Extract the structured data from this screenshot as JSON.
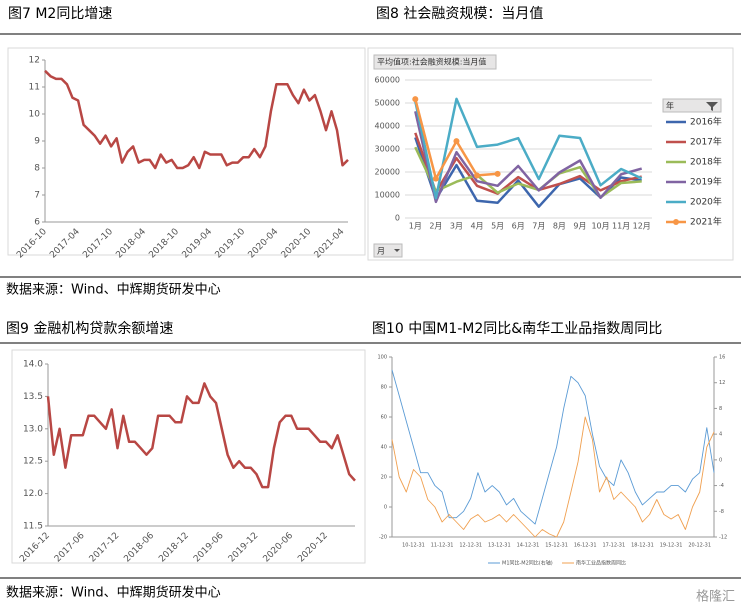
{
  "chart_data": [
    {
      "type": "line",
      "title": "图7 M2同比增速",
      "categories": [
        "2016-10",
        null,
        null,
        null,
        null,
        null,
        "2017-04",
        null,
        null,
        null,
        null,
        null,
        "2017-10",
        null,
        null,
        null,
        null,
        null,
        "2018-04",
        null,
        null,
        null,
        null,
        null,
        "2018-10",
        null,
        null,
        null,
        null,
        null,
        "2019-04",
        null,
        null,
        null,
        null,
        null,
        "2019-10",
        null,
        null,
        null,
        null,
        null,
        "2020-04",
        null,
        null,
        null,
        null,
        null,
        "2020-10",
        null,
        null,
        null,
        null,
        null,
        "2021-04",
        null
      ],
      "values": [
        11.6,
        11.4,
        11.3,
        11.3,
        11.1,
        10.6,
        10.5,
        9.6,
        9.4,
        9.2,
        8.9,
        9.2,
        8.8,
        9.1,
        8.2,
        8.6,
        8.8,
        8.2,
        8.3,
        8.3,
        8.0,
        8.5,
        8.2,
        8.3,
        8.0,
        8.0,
        8.1,
        8.4,
        8.0,
        8.6,
        8.5,
        8.5,
        8.5,
        8.1,
        8.2,
        8.2,
        8.4,
        8.4,
        8.7,
        8.4,
        8.8,
        10.1,
        11.1,
        11.1,
        11.1,
        10.7,
        10.4,
        10.9,
        10.5,
        10.7,
        10.1,
        9.4,
        10.1,
        9.4,
        8.1,
        8.3
      ],
      "color": "#b84744",
      "ylim": [
        6,
        12
      ],
      "yticks": [
        6,
        7,
        8,
        9,
        10,
        11,
        12
      ],
      "grid": false
    },
    {
      "type": "line",
      "title": "图8 社会融资规模：当月值",
      "field_label": "平均值项:社会融资规模:当月值",
      "legend_title": "年",
      "x_field": "月",
      "categories": [
        "1月",
        "2月",
        "3月",
        "4月",
        "5月",
        "6月",
        "7月",
        "8月",
        "9月",
        "10月",
        "11月",
        "12月"
      ],
      "series": [
        {
          "name": "2016年",
          "color": "#3d66ad",
          "values": [
            35000,
            8200,
            23000,
            7500,
            6600,
            16300,
            4900,
            14700,
            17200,
            8900,
            17600,
            16300
          ]
        },
        {
          "name": "2017年",
          "color": "#c0504d",
          "values": [
            37000,
            11200,
            26000,
            14000,
            10600,
            17800,
            12200,
            14800,
            18200,
            12000,
            16000,
            18000
          ]
        },
        {
          "name": "2018年",
          "color": "#9bbb59",
          "values": [
            30800,
            11700,
            15800,
            18700,
            11000,
            15000,
            12200,
            19400,
            22100,
            9000,
            15200,
            15900
          ]
        },
        {
          "name": "2019年",
          "color": "#8064a2",
          "values": [
            46400,
            7000,
            28600,
            16000,
            14000,
            22600,
            12000,
            19800,
            25000,
            8800,
            19000,
            21500
          ]
        },
        {
          "name": "2020年",
          "color": "#4bacc6",
          "values": [
            50700,
            8600,
            51800,
            30900,
            31900,
            34700,
            16900,
            35800,
            34800,
            14200,
            21300,
            17200
          ]
        },
        {
          "name": "2021年",
          "color": "#f79646",
          "marker": true,
          "values": [
            51700,
            17100,
            33400,
            18500,
            19200,
            null,
            null,
            null,
            null,
            null,
            null,
            null
          ]
        }
      ],
      "ylim": [
        0,
        60000
      ],
      "yticks": [
        0,
        10000,
        20000,
        30000,
        40000,
        50000,
        60000
      ],
      "grid": true,
      "legend": "right"
    },
    {
      "type": "line",
      "title": "图9 金融机构贷款余额增速",
      "categories": [
        "2016-12",
        null,
        null,
        null,
        null,
        null,
        "2017-06",
        null,
        null,
        null,
        null,
        null,
        "2017-12",
        null,
        null,
        null,
        null,
        null,
        "2018-06",
        null,
        null,
        null,
        null,
        null,
        "2018-12",
        null,
        null,
        null,
        null,
        null,
        "2019-06",
        null,
        null,
        null,
        null,
        null,
        "2019-12",
        null,
        null,
        null,
        null,
        null,
        "2020-06",
        null,
        null,
        null,
        null,
        null,
        "2020-12",
        null,
        null,
        null,
        null,
        null
      ],
      "values": [
        13.5,
        12.6,
        13.0,
        12.4,
        12.9,
        12.9,
        12.9,
        13.2,
        13.2,
        13.1,
        13.0,
        13.3,
        12.7,
        13.2,
        12.8,
        12.8,
        12.7,
        12.6,
        12.7,
        13.2,
        13.2,
        13.2,
        13.1,
        13.1,
        13.5,
        13.4,
        13.4,
        13.7,
        13.5,
        13.4,
        13.0,
        12.6,
        12.4,
        12.5,
        12.4,
        12.4,
        12.3,
        12.1,
        12.1,
        12.7,
        13.1,
        13.2,
        13.2,
        13.0,
        13.0,
        13.0,
        12.9,
        12.8,
        12.8,
        12.7,
        12.9,
        12.6,
        12.3,
        12.2
      ],
      "color": "#b84744",
      "ylim": [
        11.5,
        14.0
      ],
      "yticks": [
        11.5,
        {
          "value": 12,
          "label": "12.0"
        },
        12.5,
        {
          "value": 13,
          "label": "13.0"
        },
        13.5,
        {
          "value": 14,
          "label": "14.0"
        }
      ],
      "grid": false
    },
    {
      "type": "line",
      "title": "图10 中国M1-M2同比&南华工业品指数周同比",
      "categories": [
        null,
        null,
        null,
        "10-12-31",
        null,
        null,
        null,
        "11-12-31",
        null,
        null,
        null,
        "12-12-31",
        null,
        null,
        null,
        "13-12-31",
        null,
        null,
        null,
        "14-12-31",
        null,
        null,
        null,
        "15-12-31",
        null,
        null,
        null,
        "16-12-31",
        null,
        null,
        null,
        "17-12-31",
        null,
        null,
        null,
        "18-12-31",
        null,
        null,
        null,
        "19-12-31",
        null,
        null,
        null,
        "20-12-31",
        null,
        null
      ],
      "series": [
        {
          "name": "M1同比-M2同比(右轴)",
          "color": "#5b9bd5",
          "axis": "y2",
          "values": [
            14,
            10,
            6,
            2,
            -2,
            -2,
            -4,
            -5,
            -9,
            -9,
            -8,
            -6,
            -2,
            -5,
            -4,
            -5,
            -7,
            -6,
            -8,
            -9,
            -10,
            -6,
            -2,
            2,
            8,
            13,
            12,
            10,
            4,
            -1,
            -3,
            -4,
            0,
            -2,
            -5,
            -7,
            -6,
            -5,
            -5,
            -4,
            -4,
            -5,
            -3,
            -2,
            5,
            -2
          ]
        },
        {
          "name": "南华工业品指数周同比",
          "color": "#f0a050",
          "values": [
            45,
            20,
            10,
            25,
            20,
            5,
            0,
            -10,
            -5,
            -10,
            -15,
            -8,
            -5,
            -10,
            -8,
            -5,
            -10,
            -5,
            -10,
            -15,
            -20,
            -15,
            -18,
            -20,
            -10,
            10,
            30,
            60,
            45,
            10,
            20,
            5,
            10,
            5,
            0,
            -10,
            -5,
            5,
            -5,
            -8,
            -5,
            -15,
            0,
            10,
            40,
            50
          ]
        }
      ],
      "ylim": [
        -20,
        100
      ],
      "yticks": [
        -20,
        0,
        20,
        40,
        60,
        80,
        100
      ],
      "y2lim": [
        -12,
        16
      ],
      "y2ticks": [
        -12,
        -8,
        -4,
        0,
        4,
        8,
        12,
        16
      ],
      "grid": false,
      "legend": "bottom"
    }
  ],
  "sources": [
    "数据来源：Wind、中辉期货研发中心",
    "数据来源：Wind、中辉期货研发中心"
  ],
  "watermark": "格隆汇"
}
